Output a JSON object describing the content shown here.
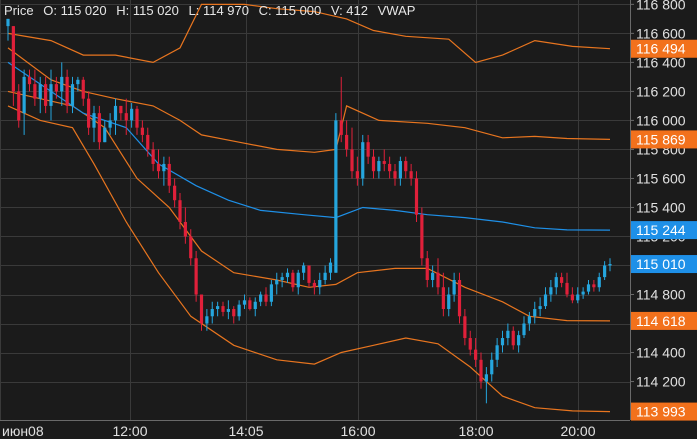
{
  "legend": {
    "symbol": "Price",
    "open": "O: 115 020",
    "high": "H: 115 020",
    "low": "L: 114 970",
    "close": "C: 115 000",
    "volume": "V: 412",
    "indicator": "VWAP"
  },
  "colors": {
    "background": "#1b1b1b",
    "grid": "#3a3a3a",
    "axis_text": "#e0e0e0",
    "up": "#25a6de",
    "down": "#e0203a",
    "vwap": "#1e90e8",
    "bands": "#e8751f",
    "band_tag": "#f2711c",
    "vwap_tag": "#1e90e8",
    "price_tag": "#1e90e8"
  },
  "chart_data": {
    "type": "candlestick",
    "x_ticks": [
      "июн08",
      "12:00",
      "14:05",
      "16:00",
      "18:00",
      "20:00"
    ],
    "y_ticks": [
      114200,
      114400,
      114600,
      114800,
      115000,
      115200,
      115400,
      115600,
      115800,
      116000,
      116200,
      116400,
      116600,
      116800
    ],
    "y_tick_labels": [
      "114 200",
      "114 400",
      "114 600",
      "114 800",
      "115 000",
      "115 200",
      "115 400",
      "115 600",
      "115 800",
      "116 000",
      "116 200",
      "116 400",
      "116 600",
      "116 800"
    ],
    "ylim": [
      113935,
      116830
    ],
    "grid": true,
    "price_tags": [
      {
        "label": "116 494",
        "value": 116494,
        "kind": "band"
      },
      {
        "label": "115 869",
        "value": 115869,
        "kind": "band"
      },
      {
        "label": "115 244",
        "value": 115244,
        "kind": "vwap"
      },
      {
        "label": "115 010",
        "value": 115010,
        "kind": "price"
      },
      {
        "label": "114 618",
        "value": 114618,
        "kind": "band"
      },
      {
        "label": "113 993",
        "value": 113993,
        "kind": "band"
      }
    ],
    "candles": [
      [
        116650,
        116700,
        116550,
        116700
      ],
      [
        116650,
        116650,
        116100,
        116200
      ],
      [
        116200,
        116250,
        115950,
        116000
      ],
      [
        116050,
        116350,
        115900,
        116300
      ],
      [
        116300,
        116350,
        116200,
        116250
      ],
      [
        116250,
        116350,
        116100,
        116150
      ],
      [
        116150,
        116300,
        116050,
        116250
      ],
      [
        116250,
        116300,
        116050,
        116100
      ],
      [
        116100,
        116350,
        116000,
        116250
      ],
      [
        116250,
        116300,
        116150,
        116200
      ],
      [
        116200,
        116400,
        116100,
        116300
      ],
      [
        116300,
        116350,
        116050,
        116100
      ],
      [
        116100,
        116300,
        116050,
        116250
      ],
      [
        116250,
        116300,
        116200,
        116280
      ],
      [
        116280,
        116300,
        116100,
        116150
      ],
      [
        116150,
        116200,
        115900,
        115950
      ],
      [
        115950,
        116100,
        115850,
        116050
      ],
      [
        116050,
        116100,
        115800,
        115850
      ],
      [
        115850,
        116000,
        115850,
        115950
      ],
      [
        115950,
        116050,
        115900,
        116000
      ],
      [
        116000,
        116150,
        115900,
        116100
      ],
      [
        116100,
        116100,
        116000,
        116050
      ],
      [
        116050,
        116150,
        115900,
        116000
      ],
      [
        116000,
        116120,
        115950,
        116080
      ],
      [
        116080,
        116100,
        115900,
        115950
      ],
      [
        115950,
        116000,
        115850,
        115900
      ],
      [
        115900,
        115950,
        115750,
        115800
      ],
      [
        115800,
        115850,
        115650,
        115700
      ],
      [
        115700,
        115800,
        115600,
        115650
      ],
      [
        115650,
        115750,
        115550,
        115700
      ],
      [
        115700,
        115750,
        115500,
        115550
      ],
      [
        115550,
        115600,
        115400,
        115450
      ],
      [
        115450,
        115500,
        115250,
        115300
      ],
      [
        115300,
        115400,
        115150,
        115200
      ],
      [
        115200,
        115250,
        115000,
        115050
      ],
      [
        115050,
        115100,
        114750,
        114800
      ],
      [
        114800,
        114800,
        114550,
        114600
      ],
      [
        114600,
        114700,
        114550,
        114650
      ],
      [
        114650,
        114750,
        114600,
        114700
      ],
      [
        114700,
        114750,
        114650,
        114720
      ],
      [
        114720,
        114750,
        114650,
        114680
      ],
      [
        114680,
        114760,
        114630,
        114700
      ],
      [
        114700,
        114720,
        114600,
        114650
      ],
      [
        114650,
        114760,
        114620,
        114730
      ],
      [
        114730,
        114800,
        114700,
        114760
      ],
      [
        114760,
        114780,
        114690,
        114700
      ],
      [
        114700,
        114780,
        114650,
        114750
      ],
      [
        114750,
        114820,
        114720,
        114800
      ],
      [
        114800,
        114850,
        114720,
        114750
      ],
      [
        114750,
        114900,
        114720,
        114870
      ],
      [
        114870,
        114950,
        114800,
        114900
      ],
      [
        114900,
        114950,
        114850,
        114920
      ],
      [
        114920,
        114980,
        114880,
        114950
      ],
      [
        114950,
        114970,
        114820,
        114850
      ],
      [
        114850,
        114970,
        114800,
        114950
      ],
      [
        114950,
        115020,
        114900,
        115000
      ],
      [
        115000,
        115000,
        114850,
        114880
      ],
      [
        114880,
        114900,
        114800,
        114850
      ],
      [
        114850,
        114950,
        114800,
        114900
      ],
      [
        114900,
        115000,
        114870,
        114950
      ],
      [
        114950,
        115050,
        114900,
        115020
      ],
      [
        114950,
        116050,
        114950,
        116000
      ],
      [
        116000,
        116300,
        115850,
        115900
      ],
      [
        115900,
        116000,
        115750,
        115800
      ],
      [
        115800,
        115950,
        115600,
        115650
      ],
      [
        115650,
        115750,
        115550,
        115600
      ],
      [
        115600,
        115900,
        115550,
        115850
      ],
      [
        115850,
        115900,
        115700,
        115750
      ],
      [
        115750,
        115800,
        115600,
        115650
      ],
      [
        115650,
        115750,
        115600,
        115720
      ],
      [
        115720,
        115800,
        115650,
        115700
      ],
      [
        115700,
        115750,
        115600,
        115650
      ],
      [
        115650,
        115700,
        115550,
        115600
      ],
      [
        115600,
        115750,
        115550,
        115720
      ],
      [
        115720,
        115750,
        115600,
        115650
      ],
      [
        115650,
        115700,
        115550,
        115600
      ],
      [
        115600,
        115650,
        115300,
        115350
      ],
      [
        115350,
        115400,
        115000,
        115050
      ],
      [
        115050,
        115100,
        114850,
        114900
      ],
      [
        114900,
        115000,
        114850,
        114950
      ],
      [
        114950,
        115050,
        114800,
        114850
      ],
      [
        114850,
        114950,
        114650,
        114700
      ],
      [
        114700,
        114850,
        114650,
        114800
      ],
      [
        114800,
        114950,
        114750,
        114900
      ],
      [
        114900,
        114950,
        114600,
        114650
      ],
      [
        114650,
        114700,
        114450,
        114500
      ],
      [
        114500,
        114550,
        114380,
        114420
      ],
      [
        114420,
        114500,
        114300,
        114350
      ],
      [
        114350,
        114400,
        114150,
        114200
      ],
      [
        114200,
        114300,
        114050,
        114250
      ],
      [
        114250,
        114400,
        114200,
        114350
      ],
      [
        114350,
        114500,
        114300,
        114450
      ],
      [
        114450,
        114550,
        114400,
        114500
      ],
      [
        114500,
        114600,
        114450,
        114550
      ],
      [
        114550,
        114580,
        114420,
        114450
      ],
      [
        114450,
        114550,
        114400,
        114520
      ],
      [
        114520,
        114650,
        114500,
        114600
      ],
      [
        114600,
        114680,
        114550,
        114650
      ],
      [
        114650,
        114750,
        114600,
        114700
      ],
      [
        114700,
        114780,
        114650,
        114720
      ],
      [
        114720,
        114850,
        114700,
        114800
      ],
      [
        114800,
        114900,
        114750,
        114850
      ],
      [
        114850,
        114950,
        114800,
        114920
      ],
      [
        114920,
        114950,
        114850,
        114880
      ],
      [
        114880,
        114950,
        114780,
        114800
      ],
      [
        114800,
        114850,
        114740,
        114760
      ],
      [
        114760,
        114850,
        114740,
        114800
      ],
      [
        114800,
        114850,
        114770,
        114820
      ],
      [
        114820,
        114900,
        114800,
        114870
      ],
      [
        114870,
        114900,
        114820,
        114850
      ],
      [
        114850,
        114950,
        114820,
        114920
      ],
      [
        114920,
        115030,
        114900,
        115000
      ],
      [
        115000,
        115050,
        114960,
        115010
      ]
    ],
    "vwap": [
      [
        0,
        116400
      ],
      [
        8,
        116200
      ],
      [
        14,
        116050
      ],
      [
        18,
        116000
      ],
      [
        22,
        115950
      ],
      [
        28,
        115700
      ],
      [
        35,
        115550
      ],
      [
        41,
        115450
      ],
      [
        47,
        115380
      ],
      [
        55,
        115350
      ],
      [
        61,
        115330
      ],
      [
        66,
        115400
      ],
      [
        72,
        115380
      ],
      [
        78,
        115350
      ],
      [
        85,
        115330
      ],
      [
        92,
        115300
      ],
      [
        98,
        115260
      ],
      [
        104,
        115245
      ],
      [
        112,
        115244
      ]
    ],
    "bands": [
      [
        [
          0,
          116600
        ],
        [
          8,
          116550
        ],
        [
          14,
          116450
        ],
        [
          20,
          116450
        ],
        [
          27,
          116400
        ],
        [
          32,
          116500
        ],
        [
          36,
          116800
        ],
        [
          44,
          116800
        ],
        [
          50,
          116770
        ],
        [
          57,
          116750
        ],
        [
          63,
          116700
        ],
        [
          68,
          116620
        ],
        [
          74,
          116580
        ],
        [
          82,
          116560
        ],
        [
          87,
          116400
        ],
        [
          92,
          116450
        ],
        [
          98,
          116550
        ],
        [
          105,
          116510
        ],
        [
          112,
          116494
        ]
      ],
      [
        [
          0,
          116500
        ],
        [
          8,
          116280
        ],
        [
          14,
          116200
        ],
        [
          20,
          116150
        ],
        [
          27,
          116100
        ],
        [
          32,
          116000
        ],
        [
          36,
          115900
        ],
        [
          43,
          115850
        ],
        [
          50,
          115800
        ],
        [
          57,
          115780
        ],
        [
          61,
          115800
        ],
        [
          63,
          116100
        ],
        [
          69,
          116000
        ],
        [
          78,
          115980
        ],
        [
          85,
          115950
        ],
        [
          92,
          115880
        ],
        [
          98,
          115890
        ],
        [
          104,
          115875
        ],
        [
          112,
          115869
        ]
      ],
      [
        [
          0,
          116200
        ],
        [
          6,
          116150
        ],
        [
          12,
          116100
        ],
        [
          18,
          115950
        ],
        [
          24,
          115600
        ],
        [
          30,
          115400
        ],
        [
          36,
          115100
        ],
        [
          42,
          114950
        ],
        [
          50,
          114900
        ],
        [
          56,
          114850
        ],
        [
          61,
          114870
        ],
        [
          65,
          114950
        ],
        [
          72,
          114980
        ],
        [
          78,
          114980
        ],
        [
          85,
          114850
        ],
        [
          92,
          114750
        ],
        [
          97,
          114650
        ],
        [
          104,
          114620
        ],
        [
          112,
          114618
        ]
      ],
      [
        [
          0,
          116100
        ],
        [
          6,
          116000
        ],
        [
          12,
          115950
        ],
        [
          16,
          115700
        ],
        [
          22,
          115300
        ],
        [
          28,
          114950
        ],
        [
          34,
          114650
        ],
        [
          42,
          114450
        ],
        [
          50,
          114350
        ],
        [
          57,
          114320
        ],
        [
          62,
          114400
        ],
        [
          68,
          114450
        ],
        [
          74,
          114500
        ],
        [
          80,
          114460
        ],
        [
          86,
          114300
        ],
        [
          92,
          114100
        ],
        [
          98,
          114020
        ],
        [
          105,
          113998
        ],
        [
          112,
          113993
        ]
      ]
    ]
  }
}
